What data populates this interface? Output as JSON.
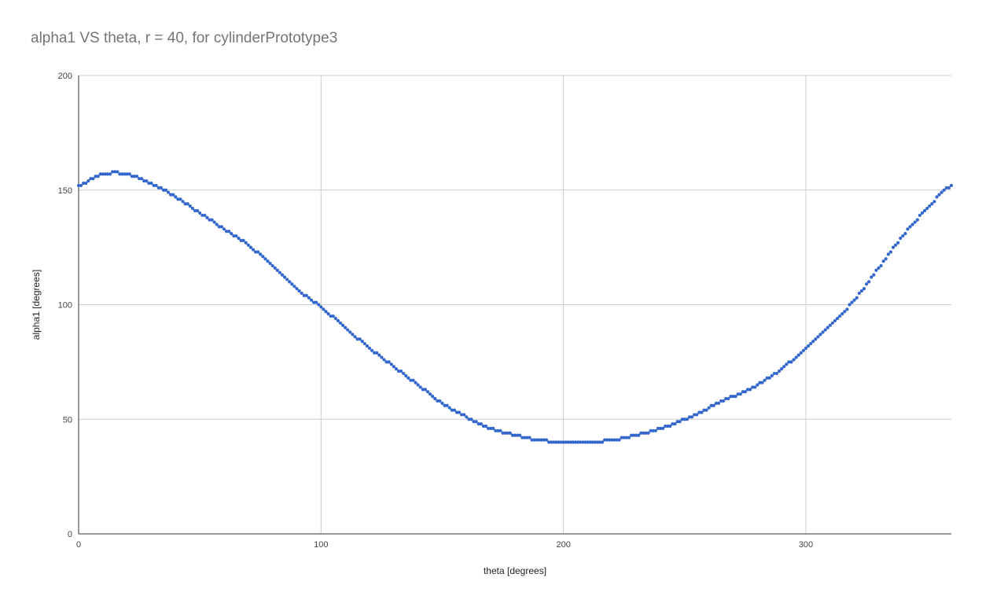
{
  "chart_data": {
    "type": "scatter",
    "title": "alpha1 VS theta, r = 40, for cylinderPrototype3",
    "xlabel": "theta [degrees]",
    "ylabel": "alpha1 [degrees]",
    "xlim": [
      0,
      360
    ],
    "ylim": [
      0,
      200
    ],
    "x_ticks": [
      0,
      100,
      200,
      300
    ],
    "y_ticks": [
      0,
      50,
      100,
      150,
      200
    ],
    "grid": true,
    "legend": "none",
    "colors": {
      "series": "#3366cc",
      "grid": "#cccccc",
      "axis": "#333333"
    },
    "series": [
      {
        "x": [
          0,
          10,
          20,
          30,
          40,
          50,
          60,
          70,
          80,
          90,
          100,
          110,
          120,
          130,
          140,
          150,
          160,
          170,
          180,
          190,
          200,
          210,
          220,
          230,
          240,
          250,
          260,
          270,
          280,
          290,
          300,
          310,
          320,
          330,
          340,
          350,
          360
        ],
        "y": [
          152,
          157,
          157,
          153,
          147,
          140,
          133,
          126,
          117,
          107,
          99,
          90,
          81,
          73,
          65,
          57,
          51,
          46,
          43,
          41,
          40,
          40,
          41,
          43,
          46,
          50,
          55,
          60,
          65,
          72,
          81,
          91,
          102,
          116,
          130,
          142,
          152
        ]
      }
    ]
  }
}
